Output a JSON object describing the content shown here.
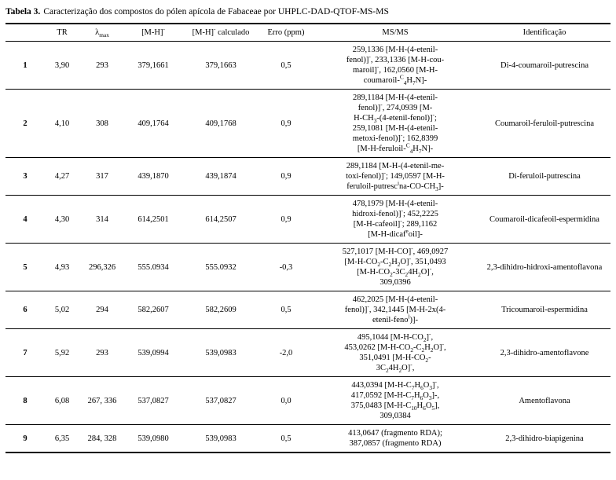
{
  "title": {
    "label": "Tabela 3.",
    "text": "Caracterização dos compostos do pólen apícola de Fabaceae por UHPLC-DAD-QTOF-MS-MS"
  },
  "table": {
    "headers": [
      "",
      "TR",
      "λ~max~",
      "[M-H]^-^",
      "[M-H]^-^ calculado",
      "Erro (ppm)",
      "MS/MS",
      "Identificação"
    ],
    "rows": [
      {
        "num": "1",
        "tr": "3,90",
        "lambda_max": "293",
        "mh": "379,1661",
        "mh_calc": "379,1663",
        "erro": "0,5",
        "msms": "259,1336 [M-H-(4-etenil-\nfenol)]^-^, 233,1336 [M-H-cou-\nmaroil]^-^, 162,0560 [M-H-\ncoumaroil-^C^~4~H~7~N]-",
        "identificacao": "Di-4-coumaroil-putrescina"
      },
      {
        "num": "2",
        "tr": "4,10",
        "lambda_max": "308",
        "mh": "409,1764",
        "mh_calc": "409,1768",
        "erro": "0,9",
        "msms": "289,1184 [M-H-(4-etenil-\nfenol)]^-^, 274,0939 [M-\nH-CH~3~-(4-etenil-fenol)]^-^;\n259,1081 [M-H-(4-etenil-\nmetoxi-fenol)]^-^; 162,8399\n[M-H-feruloil-^C^~4~H~7~N]-",
        "identificacao": "Coumaroil-feruloil-putrescina"
      },
      {
        "num": "3",
        "tr": "4,27",
        "lambda_max": "317",
        "mh": "439,1870",
        "mh_calc": "439,1874",
        "erro": "0,9",
        "msms": "289,1184 [M-H-(4-etenil-me-\ntoxi-fenol)]^-^; 149,0597 [M-H-\nferuloil-putresc^i^na-CO-CH~3~]-",
        "identificacao": "Di-feruloil-putrescina"
      },
      {
        "num": "4",
        "tr": "4,30",
        "lambda_max": "314",
        "mh": "614,2501",
        "mh_calc": "614,2507",
        "erro": "0,9",
        "msms": "478,1979 [M-H-(4-etenil-\nhidroxi-fenol)]^-^; 452,2225\n[M-H-cafeoil]^-^; 289,1162\n[M-H-dicaf^e^oil]-",
        "identificacao": "Coumaroil-dicafeoil-espermidina"
      },
      {
        "num": "5",
        "tr": "4,93",
        "lambda_max": "296,326",
        "mh": "555.0934",
        "mh_calc": "555.0932",
        "erro": "-0,3",
        "msms": "527,1017 [M-H-CO]^-^, 469,0927\n[M-H-CO~2~-C~2~H~2~O]^-^, 351,0493\n[M-H-CO~2~-3C~2~4H~2~O]^-^,\n309,0396",
        "identificacao": "2,3-dihidro-hidroxi-amentoflavona"
      },
      {
        "num": "6",
        "tr": "5,02",
        "lambda_max": "294",
        "mh": "582,2607",
        "mh_calc": "582,2609",
        "erro": "0,5",
        "msms": "462,2025 [M-H-(4-etenil-\nfenol)]^-^, 342,1445 [M-H-2x(4-\netenil-feno^l^)]-",
        "identificacao": "Tricoumaroil-espermidina"
      },
      {
        "num": "7",
        "tr": "5,92",
        "lambda_max": "293",
        "mh": "539,0994",
        "mh_calc": "539,0983",
        "erro": "-2,0",
        "msms": "495,1044 [M-H-CO~2~]^-^,\n453,0262 [M-H-CO~2~-C~2~H~2~O]^-^,\n351,0491 [M-H-CO~2~-\n3C~2~4H~2~O]^-^,",
        "identificacao": "2,3-dihidro-amentoflavone"
      },
      {
        "num": "8",
        "tr": "6,08",
        "lambda_max": "267, 336",
        "mh": "537,0827",
        "mh_calc": "537,0827",
        "erro": "0,0",
        "msms": "443,0394 [M-H-C~7~H~6~O~3~]^-^,\n417,0592 [M-H-C~7~H~6~O~3~]-,\n375,0483 [M-H-C~10~H~6~O~5~],\n309,0384",
        "identificacao": "Amentoflavona"
      },
      {
        "num": "9",
        "tr": "6,35",
        "lambda_max": "284, 328",
        "mh": "539,0980",
        "mh_calc": "539,0983",
        "erro": "0,5",
        "msms": "413,0647 (fragmento RDA);\n387,0857 (fragmento RDA)",
        "identificacao": "2,3-dihidro-biapigenina"
      }
    ]
  }
}
